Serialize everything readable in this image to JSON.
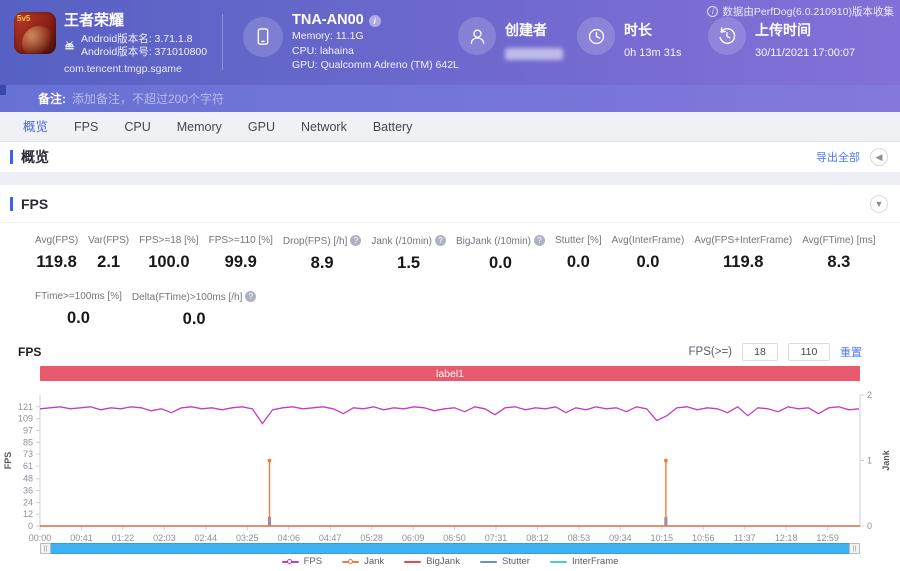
{
  "header": {
    "app": {
      "name": "王者荣耀",
      "icon_badge": "5v5",
      "version_name_line": "Android版本名: 3.71.1.8",
      "version_code_line": "Android版本号: 371010800",
      "package": "com.tencent.tmgp.sgame"
    },
    "device": {
      "model": "TNA-AN00",
      "memory_line": "Memory: 11.1G",
      "cpu_line": "CPU: lahaina",
      "gpu_line": "GPU: Qualcomm Adreno (TM) 642L"
    },
    "creator": {
      "label": "创建者"
    },
    "duration": {
      "label": "时长",
      "value": "0h 13m 31s"
    },
    "upload": {
      "label": "上传时间",
      "value": "30/11/2021 17:00:07"
    },
    "collect_info": "数据由PerfDog(6.0.210910)版本收集"
  },
  "note": {
    "label": "备注:",
    "placeholder": "添加备注，不超过200个字符"
  },
  "tabs": [
    {
      "name": "overview",
      "label": "概览",
      "active": true
    },
    {
      "name": "fps",
      "label": "FPS",
      "active": false
    },
    {
      "name": "cpu",
      "label": "CPU",
      "active": false
    },
    {
      "name": "memory",
      "label": "Memory",
      "active": false
    },
    {
      "name": "gpu",
      "label": "GPU",
      "active": false
    },
    {
      "name": "network",
      "label": "Network",
      "active": false
    },
    {
      "name": "battery",
      "label": "Battery",
      "active": false
    }
  ],
  "overview": {
    "title": "概览",
    "export_all_label": "导出全部"
  },
  "fps_section": {
    "title": "FPS",
    "metrics_row1": [
      {
        "label": "Avg(FPS)",
        "value": "119.8",
        "help": false
      },
      {
        "label": "Var(FPS)",
        "value": "2.1",
        "help": false
      },
      {
        "label": "FPS>=18 [%]",
        "value": "100.0",
        "help": false
      },
      {
        "label": "FPS>=110 [%]",
        "value": "99.9",
        "help": false
      },
      {
        "label": "Drop(FPS) [/h]",
        "value": "8.9",
        "help": true
      },
      {
        "label": "Jank (/10min)",
        "value": "1.5",
        "help": true
      },
      {
        "label": "BigJank (/10min)",
        "value": "0.0",
        "help": true
      },
      {
        "label": "Stutter [%]",
        "value": "0.0",
        "help": false
      },
      {
        "label": "Avg(InterFrame)",
        "value": "0.0",
        "help": false
      },
      {
        "label": "Avg(FPS+InterFrame)",
        "value": "119.8",
        "help": false
      },
      {
        "label": "Avg(FTime) [ms]",
        "value": "8.3",
        "help": false
      }
    ],
    "metrics_row2": [
      {
        "label": "FTime>=100ms [%]",
        "value": "0.0",
        "help": false
      },
      {
        "label": "Delta(FTime)>100ms [/h]",
        "value": "0.0",
        "help": true
      }
    ],
    "chart_controls": {
      "label": "FPS(>=)",
      "min_value": "18",
      "max_value": "110",
      "reset_label": "重置"
    },
    "chart_title": "FPS"
  },
  "chart_data": {
    "type": "line",
    "annotation": {
      "label": "label1",
      "color": "#e85a6e"
    },
    "duration_seconds": 811,
    "x_tick_interval_seconds": 41,
    "x_ticks": [
      "00:00",
      "00:41",
      "01:22",
      "02:03",
      "02:44",
      "03:25",
      "04:06",
      "04:47",
      "05:28",
      "06:09",
      "06:50",
      "07:31",
      "08:12",
      "08:53",
      "09:34",
      "10:15",
      "10:56",
      "11:37",
      "12:18",
      "12:59"
    ],
    "left_axis": {
      "label": "FPS",
      "ticks": [
        0,
        12,
        24,
        36,
        48,
        61,
        73,
        85,
        97,
        109,
        121
      ],
      "max": 133
    },
    "right_axis": {
      "label": "Jank",
      "ticks": [
        0,
        1,
        2
      ],
      "max": 2
    },
    "series": [
      {
        "name": "FPS",
        "color": "#c53cc0",
        "axis": "left",
        "sample_step_seconds": 10,
        "values": [
          119,
          120,
          121,
          119,
          120,
          121,
          118,
          120,
          119,
          121,
          120,
          117,
          119,
          115,
          120,
          121,
          119,
          120,
          118,
          120,
          121,
          119,
          104,
          118,
          120,
          121,
          119,
          120,
          121,
          119,
          114,
          120,
          119,
          121,
          118,
          120,
          119,
          121,
          120,
          117,
          119,
          120,
          116,
          121,
          119,
          113,
          120,
          121,
          118,
          120,
          119,
          121,
          115,
          120,
          118,
          121,
          119,
          120,
          116,
          121,
          119,
          107,
          112,
          120,
          121,
          118,
          120,
          119,
          115,
          121,
          112,
          120,
          119,
          116,
          121,
          119,
          120,
          114,
          120,
          121,
          118,
          119
        ]
      },
      {
        "name": "Jank",
        "color": "#ee7c40",
        "axis": "right",
        "baseline": 0,
        "spikes": [
          {
            "t": 227,
            "v": 1
          },
          {
            "t": 619,
            "v": 1
          }
        ]
      },
      {
        "name": "BigJank",
        "color": "#e64c4c",
        "axis": "right",
        "baseline": 0,
        "spikes": []
      },
      {
        "name": "Stutter",
        "color": "#688fd4",
        "axis": "right",
        "baseline": 0,
        "spikes": [
          {
            "t": 227,
            "v": 0.14
          },
          {
            "t": 619,
            "v": 0.14
          }
        ]
      },
      {
        "name": "InterFrame",
        "color": "#42cfd8",
        "axis": "right",
        "baseline": 0,
        "spikes": []
      }
    ],
    "legend": [
      "FPS",
      "Jank",
      "BigJank",
      "Stutter",
      "InterFrame"
    ]
  }
}
